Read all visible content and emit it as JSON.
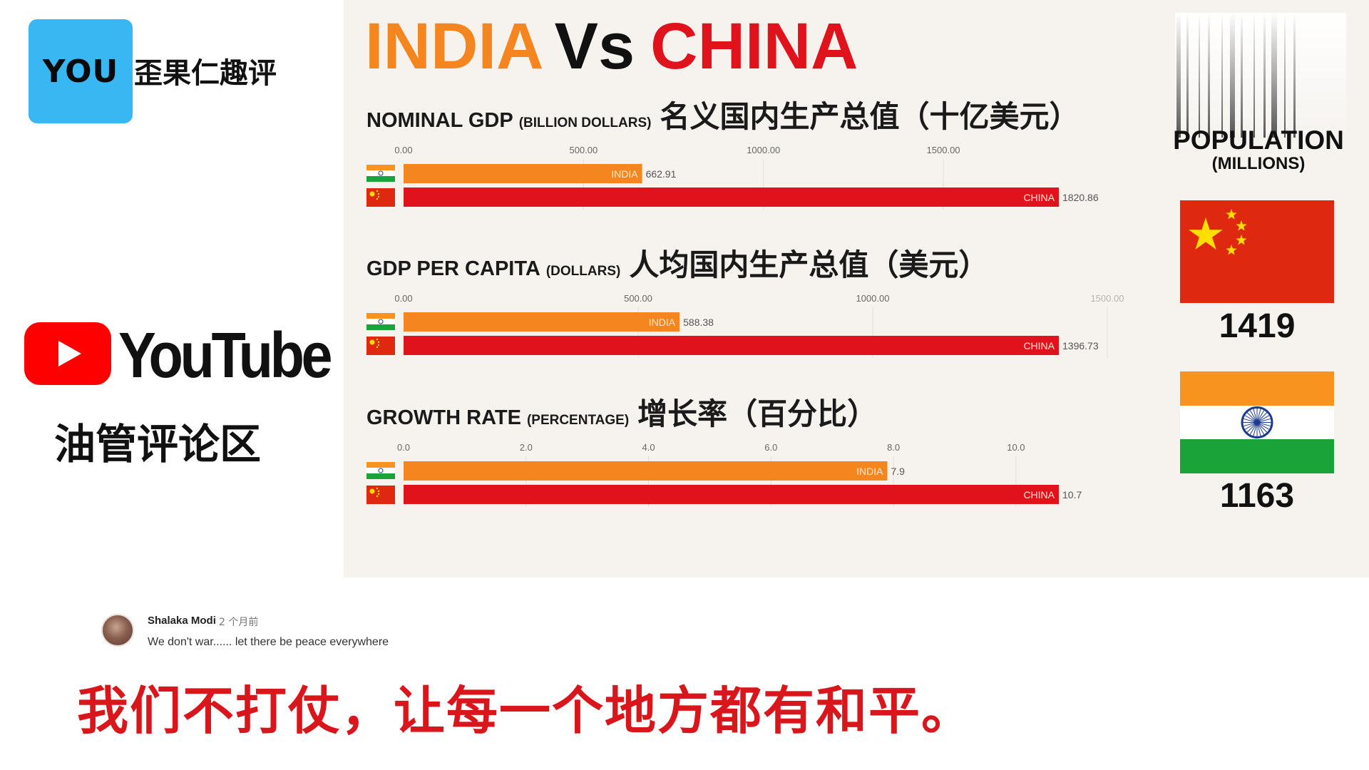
{
  "channel": {
    "logo_text": "YOU",
    "name": "歪果仁趣评",
    "platform": "YouTube",
    "section": "油管评论区"
  },
  "chart_title": {
    "left": "INDIA",
    "mid": "Vs",
    "right": "CHINA",
    "colors": {
      "india": "#f5861f",
      "vs": "#111111",
      "china": "#e0121b"
    }
  },
  "chart_data": [
    {
      "type": "bar",
      "title": "NOMINAL GDP",
      "unit": "(BILLION DOLLARS)",
      "title_cn": "名义国内生产总值（十亿美元）",
      "ticks": [
        "0.00",
        "500.00",
        "1000.00",
        "1500.00"
      ],
      "tick_values": [
        0,
        500,
        1000,
        1500
      ],
      "xlim": [
        0,
        1820.86
      ],
      "grid": true,
      "series": [
        {
          "name": "INDIA",
          "value": 662.91,
          "label": "662.91",
          "color": "#f5861f"
        },
        {
          "name": "CHINA",
          "value": 1820.86,
          "label": "1820.86",
          "color": "#e0121b"
        }
      ]
    },
    {
      "type": "bar",
      "title": "GDP PER CAPITA",
      "unit": "(DOLLARS)",
      "title_cn": "人均国内生产总值（美元）",
      "ticks": [
        "0.00",
        "500.00",
        "1000.00",
        "1500.00"
      ],
      "tick_values": [
        0,
        500,
        1000,
        1500
      ],
      "xlim": [
        0,
        1396.73
      ],
      "grid": true,
      "series": [
        {
          "name": "INDIA",
          "value": 588.38,
          "label": "588.38",
          "color": "#f5861f"
        },
        {
          "name": "CHINA",
          "value": 1396.73,
          "label": "1396.73",
          "color": "#e0121b"
        }
      ]
    },
    {
      "type": "bar",
      "title": "GROWTH RATE",
      "unit": "(PERCENTAGE)",
      "title_cn": "增长率（百分比）",
      "ticks": [
        "0.0",
        "2.0",
        "4.0",
        "6.0",
        "8.0",
        "10.0"
      ],
      "tick_values": [
        0,
        2,
        4,
        6,
        8,
        10
      ],
      "xlim": [
        0,
        10.7
      ],
      "grid": true,
      "series": [
        {
          "name": "INDIA",
          "value": 7.9,
          "label": "7.9",
          "color": "#f5861f"
        },
        {
          "name": "CHINA",
          "value": 10.7,
          "label": "10.7",
          "color": "#e0121b"
        }
      ]
    }
  ],
  "population": {
    "title": "POPULATION",
    "unit": "(MILLIONS)",
    "china": "1419",
    "india": "1163"
  },
  "comment": {
    "author": "Shalaka Modi",
    "time": "2 个月前",
    "text": "We don't war...... let there be peace everywhere",
    "translation": "我们不打仗，让每一个地方都有和平。"
  }
}
